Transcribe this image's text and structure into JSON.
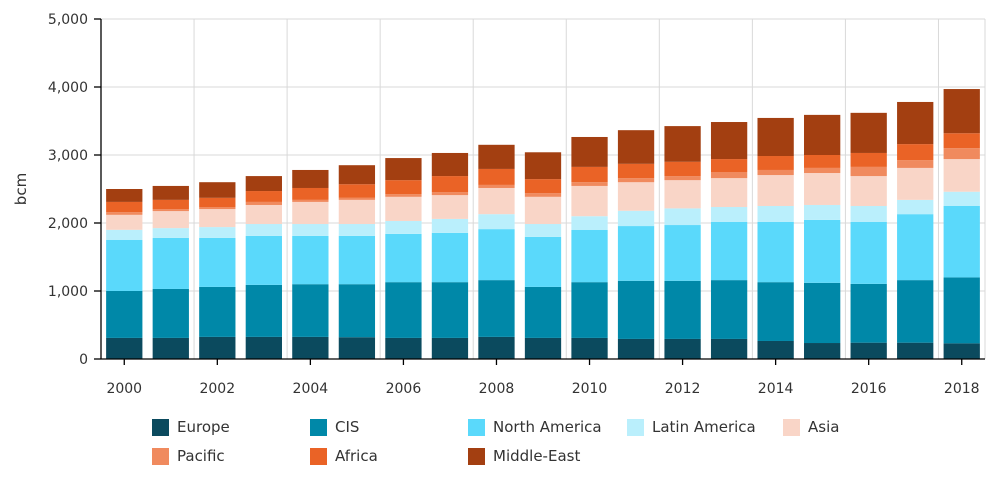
{
  "chart_data": {
    "type": "bar",
    "stacked": true,
    "title": "",
    "xlabel": "",
    "ylabel": "bcm",
    "ylim": [
      0,
      5000
    ],
    "yticks": [
      0,
      1000,
      2000,
      3000,
      4000,
      5000
    ],
    "ytick_labels": [
      "0",
      "1,000",
      "2,000",
      "3,000",
      "4,000",
      "5,000"
    ],
    "grid": true,
    "legend_position": "bottom",
    "categories": [
      "2000",
      "2001",
      "2002",
      "2003",
      "2004",
      "2005",
      "2006",
      "2007",
      "2008",
      "2009",
      "2010",
      "2011",
      "2012",
      "2013",
      "2014",
      "2015",
      "2016",
      "2017",
      "2018"
    ],
    "xtick_labels": [
      "2000",
      "2002",
      "2004",
      "2006",
      "2008",
      "2010",
      "2012",
      "2014",
      "2016",
      "2018"
    ],
    "series": [
      {
        "name": "Europe",
        "color": "#0b4a5e",
        "values": [
          310,
          310,
          325,
          325,
          325,
          320,
          310,
          310,
          325,
          310,
          310,
          295,
          295,
          295,
          265,
          235,
          240,
          240,
          230
        ]
      },
      {
        "name": "CIS",
        "color": "#0088a8",
        "values": [
          690,
          720,
          735,
          765,
          775,
          780,
          820,
          820,
          835,
          750,
          820,
          855,
          855,
          865,
          865,
          885,
          865,
          920,
          970
        ]
      },
      {
        "name": "North America",
        "color": "#5ad9fb",
        "values": [
          750,
          750,
          720,
          720,
          710,
          710,
          710,
          725,
          750,
          735,
          770,
          805,
          820,
          855,
          885,
          925,
          910,
          970,
          1050
        ]
      },
      {
        "name": "Latin America",
        "color": "#baeffc",
        "values": [
          150,
          145,
          160,
          175,
          175,
          175,
          190,
          205,
          220,
          190,
          200,
          225,
          245,
          220,
          235,
          220,
          235,
          210,
          210
        ]
      },
      {
        "name": "Asia",
        "color": "#f9d5c7",
        "values": [
          220,
          250,
          265,
          280,
          325,
          355,
          355,
          350,
          385,
          400,
          445,
          420,
          415,
          425,
          455,
          470,
          440,
          470,
          480
        ]
      },
      {
        "name": "Pacific",
        "color": "#f08a5e",
        "values": [
          40,
          30,
          30,
          45,
          30,
          30,
          40,
          45,
          45,
          55,
          55,
          60,
          60,
          90,
          75,
          75,
          135,
          115,
          160
        ]
      },
      {
        "name": "Africa",
        "color": "#ea6326",
        "values": [
          150,
          135,
          135,
          160,
          175,
          200,
          205,
          235,
          235,
          205,
          225,
          210,
          210,
          190,
          205,
          190,
          205,
          235,
          220
        ]
      },
      {
        "name": "Middle-East",
        "color": "#a33f11",
        "values": [
          190,
          205,
          230,
          220,
          265,
          280,
          325,
          340,
          355,
          395,
          440,
          495,
          525,
          545,
          560,
          590,
          590,
          620,
          650
        ]
      }
    ]
  }
}
